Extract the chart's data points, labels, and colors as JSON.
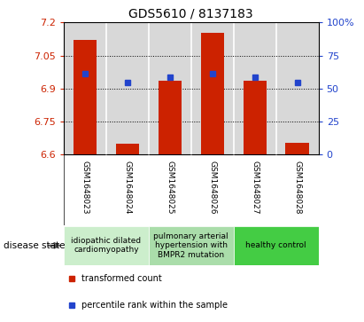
{
  "title": "GDS5610 / 8137183",
  "samples": [
    "GSM1648023",
    "GSM1648024",
    "GSM1648025",
    "GSM1648026",
    "GSM1648027",
    "GSM1648028"
  ],
  "red_values": [
    7.12,
    6.65,
    6.935,
    7.155,
    6.935,
    6.655
  ],
  "blue_values": [
    6.968,
    6.927,
    6.952,
    6.968,
    6.952,
    6.927
  ],
  "ylim_left": [
    6.6,
    7.2
  ],
  "ylim_right": [
    0,
    100
  ],
  "yticks_left": [
    6.6,
    6.75,
    6.9,
    7.05,
    7.2
  ],
  "ytick_labels_left": [
    "6.6",
    "6.75",
    "6.9",
    "7.05",
    "7.2"
  ],
  "yticks_right": [
    0,
    25,
    50,
    75,
    100
  ],
  "ytick_labels_right": [
    "0",
    "25",
    "50",
    "75",
    "100%"
  ],
  "bar_color": "#cc2200",
  "dot_color": "#2244cc",
  "base_value": 6.6,
  "bg_plot": "#d8d8d8",
  "disease_groups": [
    {
      "label": "idiopathic dilated\ncardiomyopathy",
      "cols": [
        0,
        1
      ],
      "color": "#cceecc"
    },
    {
      "label": "pulmonary arterial\nhypertension with\nBMPR2 mutation",
      "cols": [
        2,
        3
      ],
      "color": "#aaddaa"
    },
    {
      "label": "healthy control",
      "cols": [
        4,
        5
      ],
      "color": "#44cc44"
    }
  ],
  "legend_red_label": "transformed count",
  "legend_blue_label": "percentile rank within the sample",
  "disease_state_label": "disease state"
}
